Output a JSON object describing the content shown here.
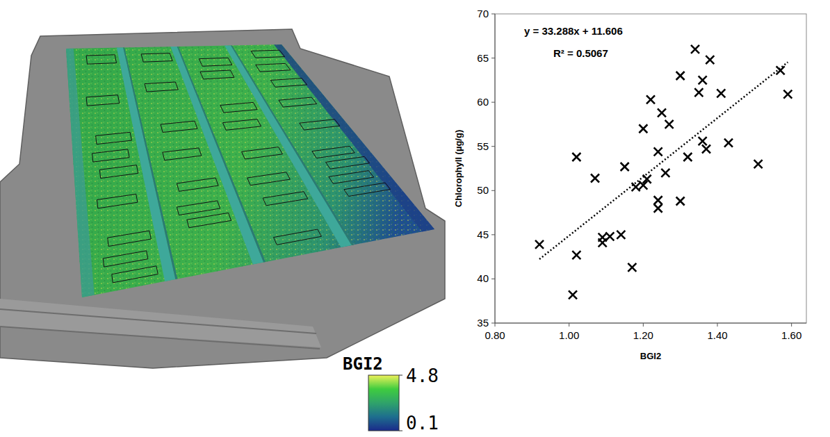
{
  "chart_data": [
    {
      "type": "surface",
      "colorbar": {
        "title": "BGI2",
        "range": [
          0.1,
          4.8
        ],
        "ticks": [
          0.1,
          4.8
        ]
      }
    },
    {
      "type": "scatter",
      "x_label": "BGI2",
      "y_label": "Chlorophyll (µg/g)",
      "annotations": [
        "y = 33.288x + 11.606",
        "R² = 0.5067"
      ],
      "x": [
        0.92,
        1.02,
        1.02,
        1.01,
        1.07,
        1.09,
        1.09,
        1.11,
        1.14,
        1.15,
        1.17,
        1.18,
        1.2,
        1.2,
        1.21,
        1.22,
        1.24,
        1.24,
        1.24,
        1.25,
        1.26,
        1.27,
        1.3,
        1.3,
        1.32,
        1.34,
        1.35,
        1.36,
        1.36,
        1.37,
        1.38,
        1.41,
        1.43,
        1.51,
        1.57,
        1.59
      ],
      "values": [
        43.9,
        53.8,
        42.7,
        38.2,
        51.4,
        44.7,
        44.1,
        44.8,
        45.0,
        52.7,
        41.3,
        50.4,
        50.6,
        57.0,
        51.3,
        60.3,
        54.4,
        48.9,
        48.0,
        58.8,
        52.0,
        57.5,
        63.0,
        48.8,
        53.8,
        66.0,
        61.1,
        55.6,
        62.5,
        54.7,
        64.8,
        61.0,
        55.4,
        53.0,
        63.6,
        60.9
      ],
      "marker": "x",
      "color": "#000000",
      "trendline": {
        "slope": 33.288,
        "intercept": 11.606,
        "x": [
          0.92,
          1.59
        ],
        "line_style": "dotted"
      },
      "xlim": [
        0.8,
        1.64
      ],
      "xticks": [
        {
          "value": 0.8,
          "label": "0.80"
        },
        {
          "value": 1.0,
          "label": "1.00"
        },
        {
          "value": 1.2,
          "label": "1.20"
        },
        {
          "value": 1.4,
          "label": "1.40"
        },
        {
          "value": 1.6,
          "label": "1.60"
        }
      ],
      "ylim": [
        35,
        70
      ],
      "yticks": [
        35,
        40,
        45,
        50,
        55,
        60,
        65,
        70
      ],
      "grid": false
    }
  ]
}
